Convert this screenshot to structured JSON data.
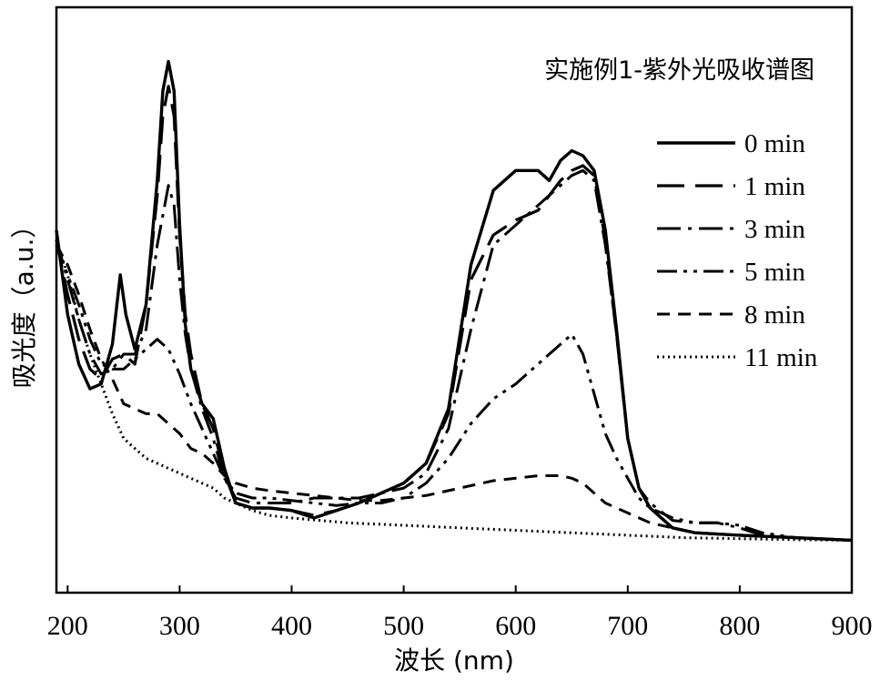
{
  "chart_data": {
    "type": "line",
    "title": "实施例1-紫外光吸收谱图",
    "xlabel": "波长 (nm)",
    "ylabel": "吸光度（a.u.）",
    "xlim": [
      190,
      900
    ],
    "ylim": [
      0,
      1
    ],
    "x_ticks": [
      200,
      300,
      400,
      500,
      600,
      700,
      800,
      900
    ],
    "x_tick_labels": [
      "200",
      "300",
      "400",
      "500",
      "600",
      "700",
      "800",
      "900"
    ],
    "y_ticks_shown": false,
    "grid": false,
    "legend_position": "right",
    "series": [
      {
        "name": "0 min",
        "dash": "solid",
        "width": 3.4,
        "points": [
          [
            190,
            0.65
          ],
          [
            200,
            0.48
          ],
          [
            210,
            0.38
          ],
          [
            220,
            0.33
          ],
          [
            230,
            0.34
          ],
          [
            240,
            0.42
          ],
          [
            247,
            0.56
          ],
          [
            252,
            0.48
          ],
          [
            260,
            0.41
          ],
          [
            270,
            0.5
          ],
          [
            280,
            0.75
          ],
          [
            285,
            0.93
          ],
          [
            290,
            0.99
          ],
          [
            295,
            0.93
          ],
          [
            300,
            0.66
          ],
          [
            305,
            0.46
          ],
          [
            310,
            0.37
          ],
          [
            320,
            0.3
          ],
          [
            330,
            0.27
          ],
          [
            340,
            0.17
          ],
          [
            350,
            0.1
          ],
          [
            365,
            0.09
          ],
          [
            380,
            0.09
          ],
          [
            400,
            0.085
          ],
          [
            420,
            0.07
          ],
          [
            440,
            0.085
          ],
          [
            460,
            0.1
          ],
          [
            480,
            0.12
          ],
          [
            500,
            0.14
          ],
          [
            520,
            0.18
          ],
          [
            540,
            0.29
          ],
          [
            560,
            0.58
          ],
          [
            580,
            0.73
          ],
          [
            600,
            0.77
          ],
          [
            620,
            0.77
          ],
          [
            630,
            0.75
          ],
          [
            640,
            0.79
          ],
          [
            650,
            0.81
          ],
          [
            660,
            0.8
          ],
          [
            670,
            0.77
          ],
          [
            680,
            0.65
          ],
          [
            690,
            0.45
          ],
          [
            700,
            0.23
          ],
          [
            710,
            0.13
          ],
          [
            720,
            0.09
          ],
          [
            740,
            0.05
          ],
          [
            760,
            0.04
          ],
          [
            800,
            0.035
          ],
          [
            850,
            0.03
          ],
          [
            900,
            0.025
          ]
        ]
      },
      {
        "name": "1 min",
        "dash": "30 12",
        "width": 3.2,
        "points": [
          [
            190,
            0.63
          ],
          [
            200,
            0.52
          ],
          [
            210,
            0.43
          ],
          [
            220,
            0.37
          ],
          [
            230,
            0.35
          ],
          [
            240,
            0.39
          ],
          [
            250,
            0.4
          ],
          [
            260,
            0.38
          ],
          [
            270,
            0.5
          ],
          [
            280,
            0.72
          ],
          [
            285,
            0.88
          ],
          [
            290,
            0.94
          ],
          [
            295,
            0.88
          ],
          [
            300,
            0.64
          ],
          [
            305,
            0.48
          ],
          [
            310,
            0.4
          ],
          [
            320,
            0.3
          ],
          [
            330,
            0.25
          ],
          [
            340,
            0.16
          ],
          [
            350,
            0.1
          ],
          [
            365,
            0.09
          ],
          [
            380,
            0.09
          ],
          [
            400,
            0.085
          ],
          [
            420,
            0.075
          ],
          [
            440,
            0.085
          ],
          [
            460,
            0.1
          ],
          [
            480,
            0.12
          ],
          [
            500,
            0.14
          ],
          [
            520,
            0.18
          ],
          [
            540,
            0.28
          ],
          [
            560,
            0.55
          ],
          [
            580,
            0.64
          ],
          [
            600,
            0.67
          ],
          [
            620,
            0.69
          ],
          [
            640,
            0.75
          ],
          [
            650,
            0.77
          ],
          [
            660,
            0.78
          ],
          [
            670,
            0.76
          ],
          [
            680,
            0.63
          ],
          [
            690,
            0.44
          ],
          [
            700,
            0.23
          ],
          [
            710,
            0.13
          ],
          [
            720,
            0.09
          ],
          [
            740,
            0.05
          ],
          [
            760,
            0.04
          ],
          [
            800,
            0.035
          ],
          [
            850,
            0.03
          ],
          [
            900,
            0.025
          ]
        ]
      },
      {
        "name": "3 min",
        "dash": "26 8 4 8",
        "width": 3.0,
        "points": [
          [
            190,
            0.63
          ],
          [
            200,
            0.55
          ],
          [
            210,
            0.47
          ],
          [
            220,
            0.4
          ],
          [
            230,
            0.36
          ],
          [
            240,
            0.37
          ],
          [
            250,
            0.4
          ],
          [
            260,
            0.4
          ],
          [
            270,
            0.45
          ],
          [
            280,
            0.62
          ],
          [
            290,
            0.74
          ],
          [
            295,
            0.7
          ],
          [
            300,
            0.55
          ],
          [
            305,
            0.44
          ],
          [
            310,
            0.37
          ],
          [
            320,
            0.29
          ],
          [
            330,
            0.23
          ],
          [
            340,
            0.15
          ],
          [
            350,
            0.11
          ],
          [
            365,
            0.1
          ],
          [
            380,
            0.1
          ],
          [
            400,
            0.1
          ],
          [
            420,
            0.11
          ],
          [
            440,
            0.11
          ],
          [
            460,
            0.11
          ],
          [
            480,
            0.12
          ],
          [
            500,
            0.13
          ],
          [
            520,
            0.16
          ],
          [
            540,
            0.25
          ],
          [
            560,
            0.45
          ],
          [
            580,
            0.62
          ],
          [
            600,
            0.66
          ],
          [
            620,
            0.7
          ],
          [
            640,
            0.74
          ],
          [
            650,
            0.76
          ],
          [
            660,
            0.77
          ],
          [
            670,
            0.75
          ],
          [
            680,
            0.62
          ],
          [
            690,
            0.44
          ],
          [
            700,
            0.23
          ],
          [
            710,
            0.13
          ],
          [
            720,
            0.1
          ],
          [
            740,
            0.065
          ],
          [
            760,
            0.06
          ],
          [
            780,
            0.06
          ],
          [
            800,
            0.05
          ],
          [
            820,
            0.035
          ],
          [
            850,
            0.03
          ],
          [
            900,
            0.025
          ]
        ]
      },
      {
        "name": "5 min",
        "dash": "22 7 4 7 4 7",
        "width": 3.0,
        "points": [
          [
            190,
            0.62
          ],
          [
            200,
            0.56
          ],
          [
            210,
            0.5
          ],
          [
            220,
            0.43
          ],
          [
            230,
            0.38
          ],
          [
            240,
            0.37
          ],
          [
            250,
            0.37
          ],
          [
            260,
            0.39
          ],
          [
            270,
            0.41
          ],
          [
            280,
            0.43
          ],
          [
            290,
            0.41
          ],
          [
            300,
            0.36
          ],
          [
            310,
            0.3
          ],
          [
            320,
            0.25
          ],
          [
            330,
            0.2
          ],
          [
            340,
            0.15
          ],
          [
            350,
            0.12
          ],
          [
            365,
            0.11
          ],
          [
            380,
            0.11
          ],
          [
            400,
            0.105
          ],
          [
            420,
            0.1
          ],
          [
            440,
            0.095
          ],
          [
            460,
            0.1
          ],
          [
            480,
            0.1
          ],
          [
            500,
            0.11
          ],
          [
            520,
            0.14
          ],
          [
            540,
            0.19
          ],
          [
            560,
            0.26
          ],
          [
            580,
            0.31
          ],
          [
            600,
            0.34
          ],
          [
            620,
            0.38
          ],
          [
            640,
            0.42
          ],
          [
            650,
            0.44
          ],
          [
            660,
            0.4
          ],
          [
            670,
            0.32
          ],
          [
            680,
            0.24
          ],
          [
            690,
            0.19
          ],
          [
            700,
            0.15
          ],
          [
            710,
            0.11
          ],
          [
            720,
            0.09
          ],
          [
            740,
            0.07
          ],
          [
            760,
            0.06
          ],
          [
            780,
            0.06
          ],
          [
            800,
            0.055
          ],
          [
            820,
            0.04
          ],
          [
            850,
            0.03
          ],
          [
            900,
            0.025
          ]
        ]
      },
      {
        "name": "8 min",
        "dash": "14 9",
        "width": 3.0,
        "points": [
          [
            190,
            0.62
          ],
          [
            200,
            0.58
          ],
          [
            210,
            0.52
          ],
          [
            220,
            0.45
          ],
          [
            230,
            0.39
          ],
          [
            240,
            0.35
          ],
          [
            250,
            0.3
          ],
          [
            260,
            0.29
          ],
          [
            270,
            0.28
          ],
          [
            280,
            0.28
          ],
          [
            290,
            0.26
          ],
          [
            300,
            0.24
          ],
          [
            310,
            0.21
          ],
          [
            320,
            0.2
          ],
          [
            330,
            0.18
          ],
          [
            340,
            0.155
          ],
          [
            350,
            0.14
          ],
          [
            365,
            0.13
          ],
          [
            380,
            0.125
          ],
          [
            400,
            0.12
          ],
          [
            420,
            0.115
          ],
          [
            440,
            0.11
          ],
          [
            460,
            0.105
          ],
          [
            480,
            0.105
          ],
          [
            500,
            0.11
          ],
          [
            520,
            0.115
          ],
          [
            540,
            0.125
          ],
          [
            560,
            0.135
          ],
          [
            580,
            0.145
          ],
          [
            600,
            0.15
          ],
          [
            620,
            0.155
          ],
          [
            640,
            0.155
          ],
          [
            650,
            0.15
          ],
          [
            660,
            0.14
          ],
          [
            670,
            0.12
          ],
          [
            680,
            0.1
          ],
          [
            700,
            0.08
          ],
          [
            720,
            0.06
          ],
          [
            740,
            0.05
          ],
          [
            760,
            0.04
          ],
          [
            800,
            0.035
          ],
          [
            850,
            0.03
          ],
          [
            900,
            0.025
          ]
        ]
      },
      {
        "name": "11 min",
        "dash": "2 4",
        "width": 3.0,
        "points": [
          [
            190,
            0.63
          ],
          [
            200,
            0.56
          ],
          [
            210,
            0.47
          ],
          [
            220,
            0.4
          ],
          [
            230,
            0.34
          ],
          [
            240,
            0.28
          ],
          [
            250,
            0.23
          ],
          [
            260,
            0.21
          ],
          [
            270,
            0.19
          ],
          [
            280,
            0.18
          ],
          [
            290,
            0.17
          ],
          [
            300,
            0.16
          ],
          [
            310,
            0.15
          ],
          [
            320,
            0.14
          ],
          [
            330,
            0.13
          ],
          [
            340,
            0.11
          ],
          [
            350,
            0.1
          ],
          [
            365,
            0.085
          ],
          [
            380,
            0.075
          ],
          [
            400,
            0.07
          ],
          [
            450,
            0.06
          ],
          [
            500,
            0.055
          ],
          [
            550,
            0.05
          ],
          [
            600,
            0.045
          ],
          [
            650,
            0.04
          ],
          [
            700,
            0.035
          ],
          [
            750,
            0.03
          ],
          [
            800,
            0.028
          ],
          [
            850,
            0.026
          ],
          [
            900,
            0.025
          ]
        ]
      }
    ]
  }
}
